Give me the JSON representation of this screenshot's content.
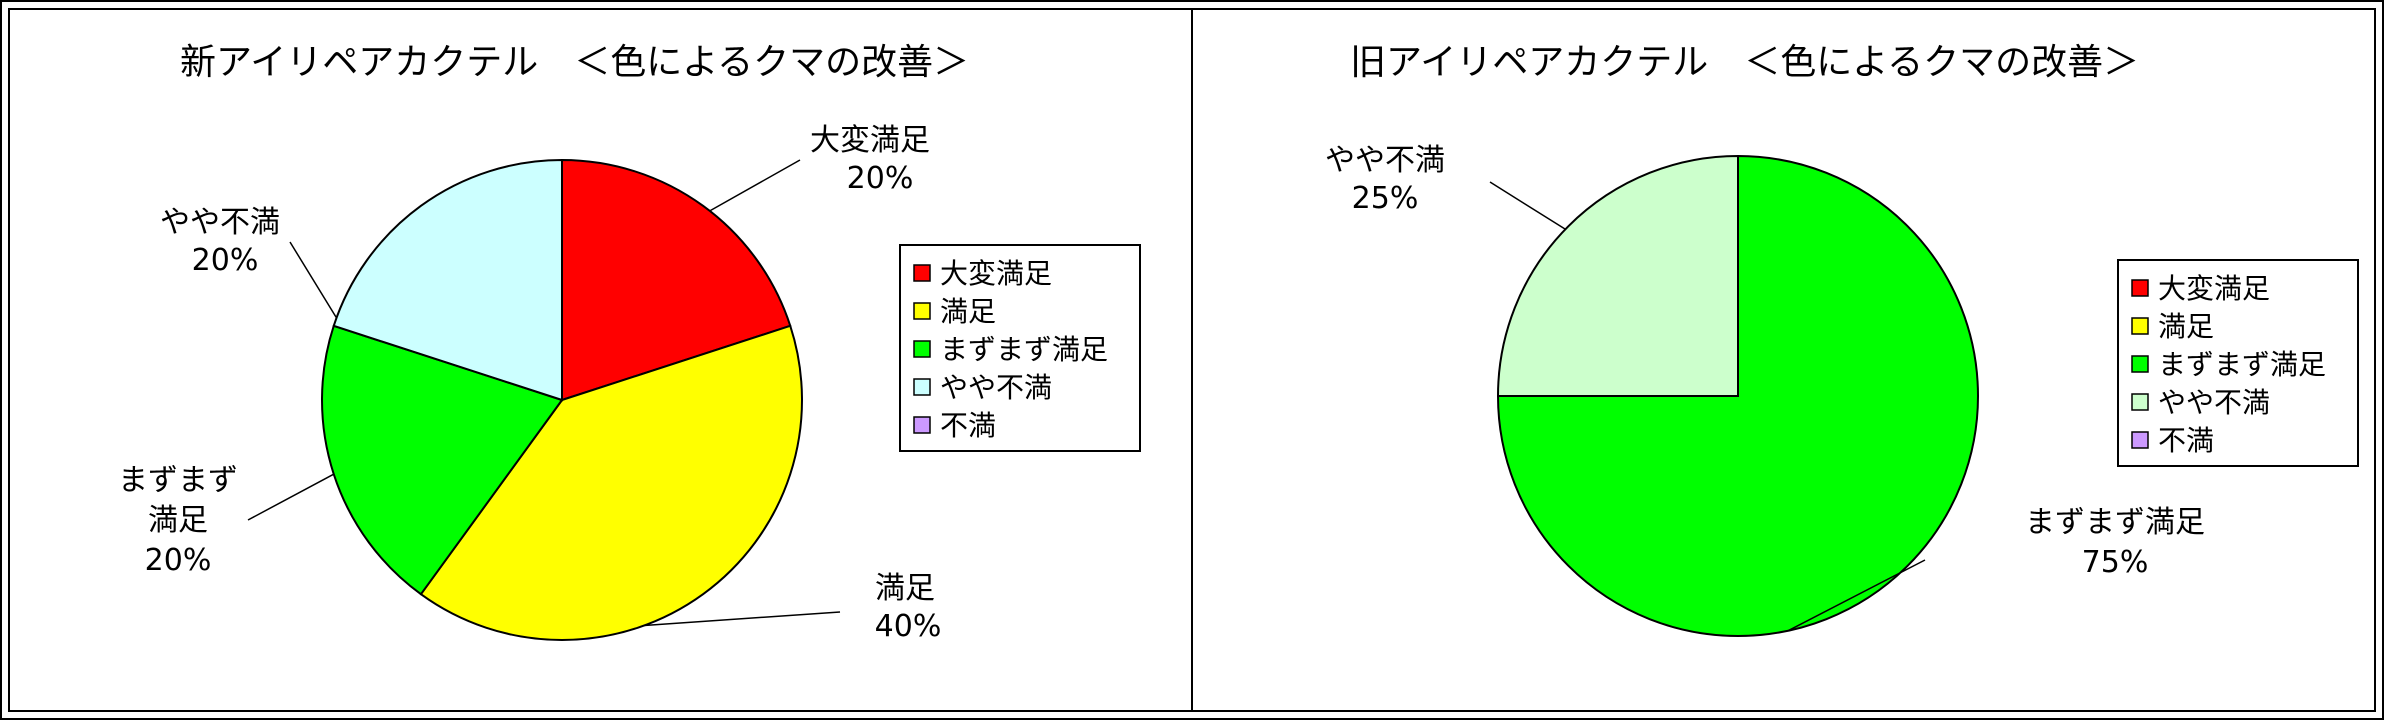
{
  "chart_data": [
    {
      "type": "pie",
      "title": "新アイリペアカクテル　＜色によるクマの改善＞",
      "series": [
        {
          "values": [
            20,
            40,
            20,
            20,
            0
          ]
        }
      ],
      "categories": [
        "大変満足",
        "満足",
        "まずまず満足",
        "やや不満",
        "不満"
      ],
      "slices": [
        {
          "category": "大変満足",
          "value": 20,
          "percent_label": "20%",
          "color": "#ff0000",
          "label_lines": [
            "大変満足"
          ]
        },
        {
          "category": "満足",
          "value": 40,
          "percent_label": "40%",
          "color": "#ffff00",
          "label_lines": [
            "満足"
          ]
        },
        {
          "category": "まずまず満足",
          "value": 20,
          "percent_label": "20%",
          "color": "#00ff00",
          "label_lines": [
            "まずまず",
            "満足"
          ]
        },
        {
          "category": "やや不満",
          "value": 20,
          "percent_label": "20%",
          "color": "#ccffff",
          "label_lines": [
            "やや不満"
          ]
        },
        {
          "category": "不満",
          "value": 0,
          "percent_label": "",
          "color": "#cc99ff",
          "label_lines": []
        }
      ],
      "legend": {
        "position": "right",
        "entries": [
          {
            "label": "大変満足",
            "color": "#ff0000"
          },
          {
            "label": "満足",
            "color": "#ffff00"
          },
          {
            "label": "まずまず満足",
            "color": "#00ff00"
          },
          {
            "label": "やや不満",
            "color": "#ccffff"
          },
          {
            "label": "不満",
            "color": "#cc99ff"
          }
        ]
      }
    },
    {
      "type": "pie",
      "title": "旧アイリペアカクテル　＜色によるクマの改善＞",
      "series": [
        {
          "values": [
            0,
            0,
            75,
            25,
            0
          ]
        }
      ],
      "categories": [
        "大変満足",
        "満足",
        "まずまず満足",
        "やや不満",
        "不満"
      ],
      "slices": [
        {
          "category": "大変満足",
          "value": 0,
          "percent_label": "",
          "color": "#ff0000",
          "label_lines": []
        },
        {
          "category": "満足",
          "value": 0,
          "percent_label": "",
          "color": "#ffff00",
          "label_lines": []
        },
        {
          "category": "まずまず満足",
          "value": 75,
          "percent_label": "75%",
          "color": "#00ff00",
          "label_lines": [
            "まずまず満足"
          ]
        },
        {
          "category": "やや不満",
          "value": 25,
          "percent_label": "25%",
          "color": "#ccffcc",
          "label_lines": [
            "やや不満"
          ]
        },
        {
          "category": "不満",
          "value": 0,
          "percent_label": "",
          "color": "#cc99ff",
          "label_lines": []
        }
      ],
      "legend": {
        "position": "right",
        "entries": [
          {
            "label": "大変満足",
            "color": "#ff0000"
          },
          {
            "label": "満足",
            "color": "#ffff00"
          },
          {
            "label": "まずまず満足",
            "color": "#00ff00"
          },
          {
            "label": "やや不満",
            "color": "#ccffcc"
          },
          {
            "label": "不満",
            "color": "#cc99ff"
          }
        ]
      }
    }
  ]
}
